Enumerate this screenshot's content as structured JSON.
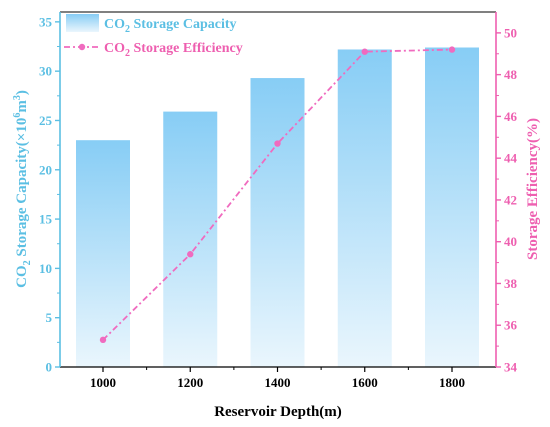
{
  "chart_data": {
    "type": "bar+line",
    "categories": [
      "1000",
      "1200",
      "1400",
      "1600",
      "1800"
    ],
    "series": [
      {
        "name": "CO2 Storage Capacity",
        "type": "bar",
        "axis": "left",
        "values": [
          23.0,
          25.9,
          29.3,
          32.2,
          32.4
        ]
      },
      {
        "name": "CO2 Storage Efficiency",
        "type": "line",
        "axis": "right",
        "values": [
          35.3,
          39.4,
          44.7,
          49.1,
          49.2
        ]
      }
    ],
    "xlabel": "Reservoir Depth(m)",
    "ylabel": "CO2 Storage Capacity(×10^6 m^3)",
    "y2label": "Storage Efficiency(%)",
    "ylim": [
      0,
      36
    ],
    "y2lim": [
      34,
      51
    ],
    "yticks": [
      "0",
      "5",
      "10",
      "15",
      "20",
      "25",
      "30",
      "35"
    ],
    "y2ticks": [
      "34",
      "36",
      "38",
      "40",
      "42",
      "44",
      "46",
      "48",
      "50"
    ],
    "legend_position": "top-left",
    "colors": {
      "bar_top": "#87cdf5",
      "bar_bottom": "#eaf6fd",
      "left_axis": "#5bbfe3",
      "right_axis": "#ee5fb0",
      "line": "#f06bbf"
    }
  },
  "legend": {
    "capacity_prefix": "CO",
    "capacity_sub": "2",
    "capacity_suffix": " Storage Capacity",
    "efficiency_prefix": "CO",
    "efficiency_sub": "2",
    "efficiency_suffix": " Storage Efficiency"
  },
  "axis_titles": {
    "x": "Reservoir Depth(m)",
    "left_prefix": "CO",
    "left_sub": "2",
    "left_mid": " Storage Capacity(×10",
    "left_sup1": "6",
    "left_m": "m",
    "left_sup2": "3",
    "left_end": ")",
    "right": "Storage Efficiency(%)"
  }
}
